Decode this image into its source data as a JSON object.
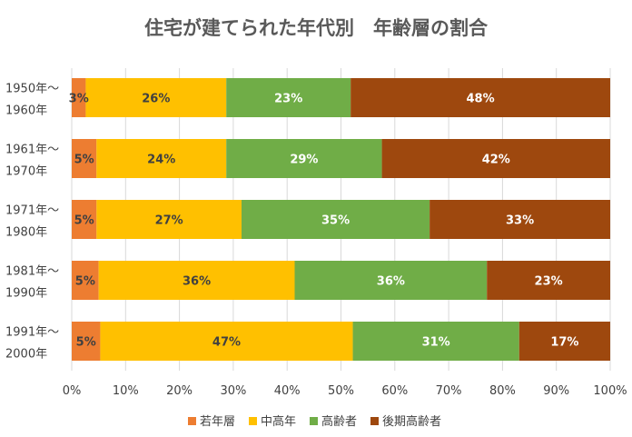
{
  "chart_data": {
    "type": "bar",
    "orientation": "horizontal",
    "stacked": "percent",
    "title": "住宅が建てられた年代別　年齢層の割合",
    "categories": [
      [
        "1950年～",
        "1960年"
      ],
      [
        "1961年～",
        "1970年"
      ],
      [
        "1971年～",
        "1980年"
      ],
      [
        "1981年～",
        "1990年"
      ],
      [
        "1991年～",
        "2000年"
      ]
    ],
    "series": [
      {
        "name": "若年層",
        "color": "#ED7D31",
        "label_color": "#404040",
        "values": [
          2.6,
          4.6,
          4.6,
          5.0,
          5.3
        ],
        "labels": [
          "3%",
          "5%",
          "5%",
          "5%",
          "5%"
        ]
      },
      {
        "name": "中高年",
        "color": "#FFC000",
        "label_color": "#404040",
        "values": [
          26.1,
          24.1,
          26.9,
          36.4,
          46.9
        ],
        "labels": [
          "26%",
          "24%",
          "27%",
          "36%",
          "47%"
        ]
      },
      {
        "name": "高齢者",
        "color": "#70AD47",
        "label_color": "#ffffff",
        "values": [
          23.1,
          28.9,
          34.9,
          35.7,
          30.9
        ],
        "labels": [
          "23%",
          "29%",
          "35%",
          "36%",
          "31%"
        ]
      },
      {
        "name": "後期高齢者",
        "color": "#9E480E",
        "label_color": "#ffffff",
        "values": [
          48.2,
          42.4,
          33.5,
          22.9,
          16.9
        ],
        "labels": [
          "48%",
          "42%",
          "33%",
          "23%",
          "17%"
        ]
      }
    ],
    "x_ticks": [
      "0%",
      "10%",
      "20%",
      "30%",
      "40%",
      "50%",
      "60%",
      "70%",
      "80%",
      "90%",
      "100%"
    ],
    "xlim": [
      0,
      100
    ],
    "xlabel": "",
    "ylabel": "",
    "grid": true,
    "legend": "bottom"
  }
}
